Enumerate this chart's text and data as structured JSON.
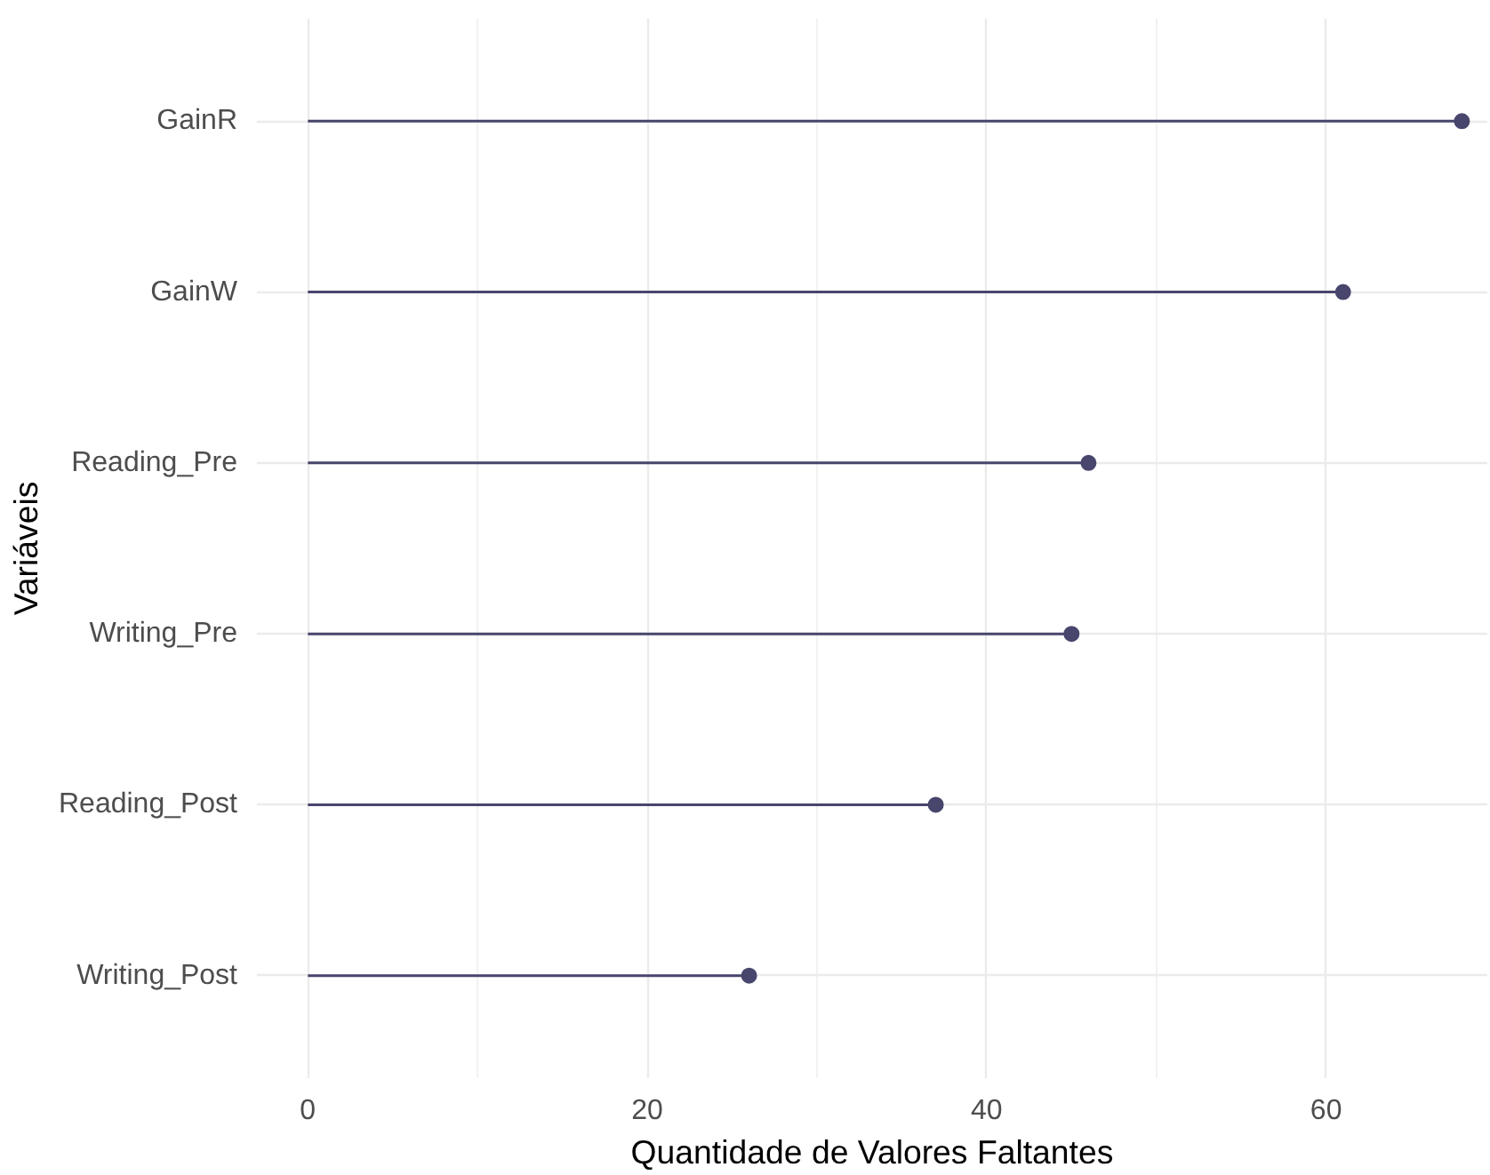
{
  "chart_data": {
    "type": "lollipop",
    "orientation": "horizontal",
    "xlabel": "Quantidade de Valores Faltantes",
    "ylabel": "Variáveis",
    "categories": [
      "GainR",
      "GainW",
      "Reading_Pre",
      "Writing_Pre",
      "Reading_Post",
      "Writing_Post"
    ],
    "values": [
      68,
      61,
      46,
      45,
      37,
      26
    ],
    "color": "#48466d",
    "xlim": [
      -3,
      69.5
    ],
    "xticks": [
      0,
      20,
      40,
      60
    ],
    "grid": true,
    "marker": "circle"
  }
}
